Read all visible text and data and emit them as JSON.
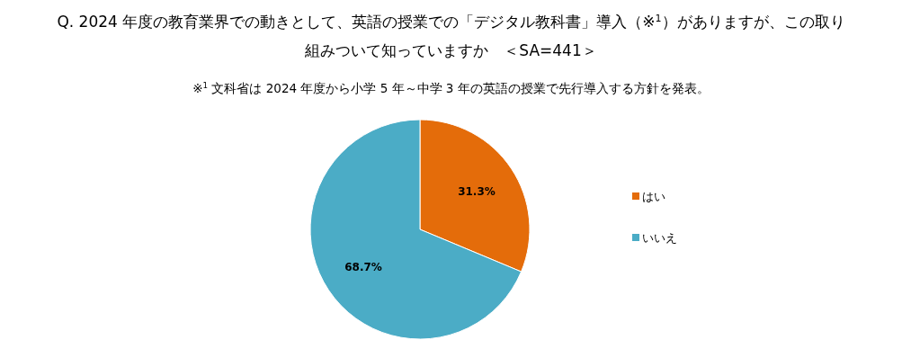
{
  "chart_data": {
    "type": "pie",
    "title": "Q. 2024 年度の教育業界での動きとして、英語の授業での「デジタル教科書」導入（※$^{1}$）がありますが、この取り組みついて知っていますか　＜SA=441＞",
    "subtitle": "※$^{1}$ 文科省は 2024 年度から小学 5 年～中学 3 年の英語の授業で先行導入する方針を発表。",
    "categories": [
      "はい",
      "いいえ"
    ],
    "values": [
      31.3,
      68.7
    ],
    "colors": [
      "#e46c0a",
      "#4bacc6"
    ],
    "value_labels": [
      "31.3%",
      "68.7%"
    ],
    "legend": "right"
  }
}
